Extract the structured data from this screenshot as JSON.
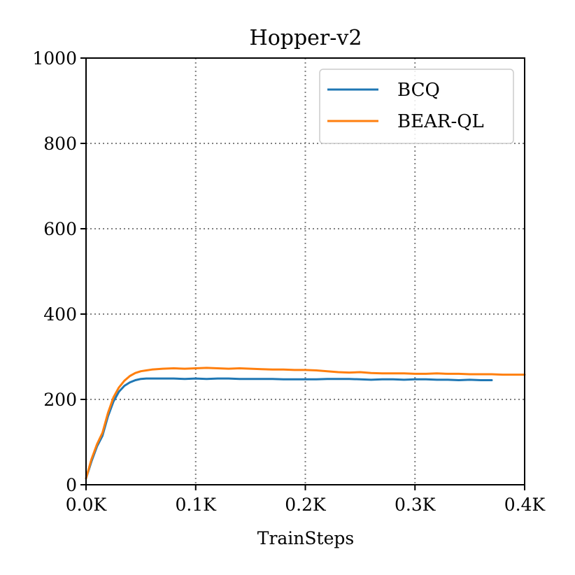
{
  "chart_data": {
    "type": "line",
    "title": "Hopper-v2",
    "xlabel": "TrainSteps",
    "ylabel": "",
    "xlim": [
      0,
      0.4
    ],
    "ylim": [
      0,
      1000
    ],
    "x_ticks": [
      0,
      0.1,
      0.2,
      0.3,
      0.4
    ],
    "x_tick_labels": [
      "0.0K",
      "0.1K",
      "0.2K",
      "0.3K",
      "0.4K"
    ],
    "y_ticks": [
      0,
      200,
      400,
      600,
      800,
      1000
    ],
    "y_tick_labels": [
      "0",
      "200",
      "400",
      "600",
      "800",
      "1000"
    ],
    "grid": true,
    "legend_position": "top-right",
    "series": [
      {
        "name": "BCQ",
        "color": "#1f77b4",
        "x": [
          0,
          0.005,
          0.01,
          0.015,
          0.02,
          0.025,
          0.03,
          0.035,
          0.04,
          0.045,
          0.05,
          0.055,
          0.06,
          0.07,
          0.08,
          0.09,
          0.1,
          0.11,
          0.12,
          0.13,
          0.14,
          0.15,
          0.16,
          0.17,
          0.18,
          0.19,
          0.2,
          0.21,
          0.22,
          0.23,
          0.24,
          0.25,
          0.26,
          0.27,
          0.28,
          0.29,
          0.3,
          0.31,
          0.32,
          0.33,
          0.34,
          0.35,
          0.36,
          0.37
        ],
        "y": [
          15,
          55,
          90,
          115,
          160,
          195,
          218,
          232,
          240,
          245,
          248,
          249,
          249,
          249,
          249,
          248,
          249,
          248,
          249,
          249,
          248,
          248,
          248,
          248,
          247,
          247,
          247,
          247,
          248,
          248,
          248,
          247,
          246,
          247,
          247,
          246,
          247,
          247,
          246,
          246,
          245,
          246,
          245,
          245
        ]
      },
      {
        "name": "BEAR-QL",
        "color": "#ff7f0e",
        "x": [
          0,
          0.005,
          0.01,
          0.015,
          0.02,
          0.025,
          0.03,
          0.035,
          0.04,
          0.045,
          0.05,
          0.055,
          0.06,
          0.07,
          0.08,
          0.09,
          0.1,
          0.11,
          0.12,
          0.13,
          0.14,
          0.15,
          0.16,
          0.17,
          0.18,
          0.19,
          0.2,
          0.21,
          0.22,
          0.23,
          0.24,
          0.25,
          0.26,
          0.27,
          0.28,
          0.29,
          0.3,
          0.31,
          0.32,
          0.33,
          0.34,
          0.35,
          0.36,
          0.37,
          0.38,
          0.39,
          0.4
        ],
        "y": [
          15,
          60,
          95,
          122,
          168,
          205,
          228,
          244,
          255,
          262,
          266,
          268,
          270,
          272,
          273,
          272,
          273,
          274,
          273,
          272,
          273,
          272,
          271,
          270,
          270,
          269,
          269,
          268,
          266,
          264,
          263,
          264,
          262,
          261,
          261,
          261,
          260,
          260,
          261,
          260,
          260,
          259,
          259,
          259,
          258,
          258,
          258
        ]
      }
    ]
  }
}
